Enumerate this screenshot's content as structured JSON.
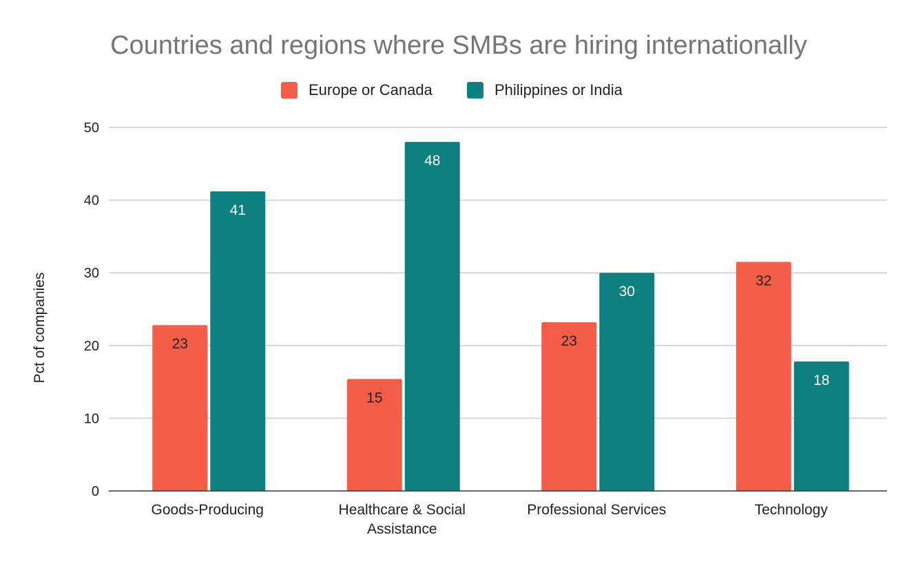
{
  "chart_data": {
    "type": "bar",
    "title": "Countries and regions where SMBs are hiring internationally",
    "xlabel": "",
    "ylabel": "Pct of companies",
    "ylim": [
      0,
      50
    ],
    "yticks": [
      0,
      10,
      20,
      30,
      40,
      50
    ],
    "grid": true,
    "legend_position": "top",
    "categories": [
      [
        "Goods-Producing"
      ],
      [
        "Healthcare & Social",
        "Assistance"
      ],
      [
        "Professional Services"
      ],
      [
        "Technology"
      ]
    ],
    "series": [
      {
        "name": "Europe or Canada",
        "color": "#f45d48",
        "label_color": "#222222",
        "values": [
          22.8,
          15.4,
          23.2,
          31.5
        ],
        "labels": [
          "23",
          "15",
          "23",
          "32"
        ]
      },
      {
        "name": "Philippines or India",
        "color": "#0e8080",
        "label_color": "#ffffff",
        "values": [
          41.2,
          48.0,
          30.0,
          17.8
        ],
        "labels": [
          "41",
          "48",
          "30",
          "18"
        ]
      }
    ]
  }
}
